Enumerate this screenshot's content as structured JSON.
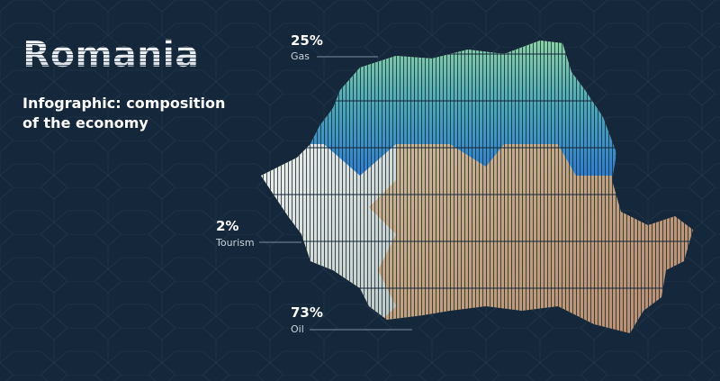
{
  "header": {
    "title": "Romania",
    "subtitle_lines": [
      "Infographic: composition",
      "of the economy"
    ]
  },
  "items": [
    {
      "percent": "25%",
      "name": "Gas"
    },
    {
      "percent": "2%",
      "name": "Tourism"
    },
    {
      "percent": "73%",
      "name": "Oil"
    }
  ]
}
